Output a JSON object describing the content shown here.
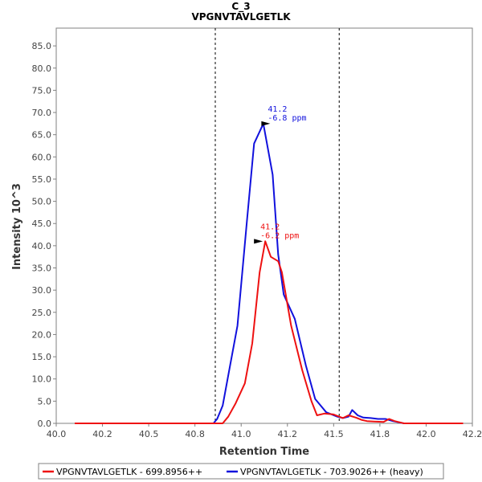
{
  "chart_data": {
    "type": "line",
    "title": "C_3",
    "subtitle": "VPGNVTAVLGETLK",
    "xlabel": "Retention Time",
    "ylabel": "Intensity 10^3",
    "xlim": [
      40.0,
      42.25
    ],
    "ylim": [
      0,
      89
    ],
    "x_ticks": [
      "40.0",
      "40.2",
      "40.5",
      "40.8",
      "41.0",
      "41.2",
      "41.5",
      "41.8",
      "42.0",
      "42.2"
    ],
    "y_ticks": [
      "0.0",
      "5.0",
      "10.0",
      "15.0",
      "20.0",
      "25.0",
      "30.0",
      "35.0",
      "40.0",
      "45.0",
      "50.0",
      "55.0",
      "60.0",
      "65.0",
      "70.0",
      "75.0",
      "80.0",
      "85.0"
    ],
    "boundaries": [
      40.86,
      41.53
    ],
    "series": [
      {
        "name": "VPGNVTAVLGETLK - 699.8956++",
        "color": "#ee1111",
        "x": [
          40.1,
          40.8,
          40.9,
          40.93,
          40.97,
          41.02,
          41.06,
          41.1,
          41.13,
          41.16,
          41.2,
          41.22,
          41.27,
          41.33,
          41.38,
          41.41,
          41.45,
          41.5,
          41.55,
          41.58,
          41.62,
          41.65,
          41.68,
          41.72,
          41.77,
          41.8,
          41.83,
          41.88,
          42.2
        ],
        "y": [
          0,
          0,
          0,
          1.5,
          4.5,
          9,
          18,
          34,
          41,
          37.5,
          36.5,
          34,
          22,
          12,
          5,
          1.8,
          2.2,
          2,
          1.2,
          1.8,
          1.3,
          0.8,
          0.5,
          0.4,
          0.3,
          1.0,
          0.5,
          0,
          0
        ]
      },
      {
        "name": "VPGNVTAVLGETLK - 703.9026++ (heavy)",
        "color": "#1111dd",
        "x": [
          40.1,
          40.85,
          40.87,
          40.9,
          40.94,
          40.98,
          41.03,
          41.07,
          41.12,
          41.17,
          41.2,
          41.23,
          41.29,
          41.35,
          41.4,
          41.46,
          41.52,
          41.55,
          41.58,
          41.6,
          41.63,
          41.66,
          41.7,
          41.74,
          41.78,
          41.82,
          41.88,
          42.2
        ],
        "y": [
          0,
          0,
          1,
          4,
          13,
          22,
          45,
          63,
          67.5,
          56,
          38,
          29,
          23.5,
          13,
          5.5,
          2.5,
          1.5,
          1.2,
          1.5,
          3,
          1.8,
          1.3,
          1.2,
          1.0,
          1.0,
          0.5,
          0,
          0
        ]
      }
    ],
    "annotations": [
      {
        "series": 1,
        "x": 41.17,
        "y": 67.5,
        "line1": "41.2",
        "line2": "-6.8 ppm",
        "color": "#1111dd"
      },
      {
        "series": 0,
        "x": 41.13,
        "y": 41,
        "line1": "41.2",
        "line2": "-6.2 ppm",
        "color": "#ee1111"
      }
    ],
    "legend_position": "bottom"
  }
}
